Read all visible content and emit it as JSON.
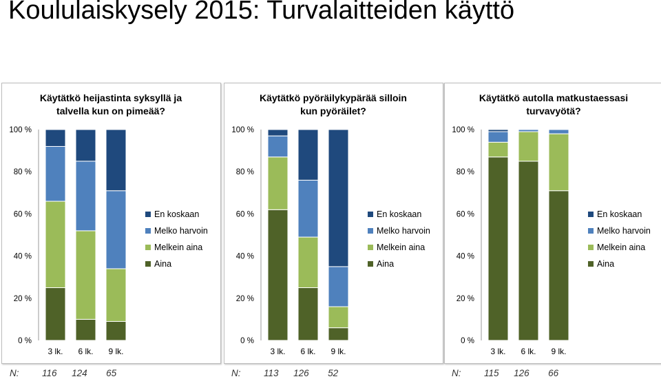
{
  "page_title": "Koululaiskysely 2015: Turvalaitteiden käyttö",
  "colors": {
    "En koskaan": "#1f497d",
    "Melko harvoin": "#4f81bd",
    "Melkein aina": "#9bbb59",
    "Aina": "#4f6228"
  },
  "chart_data": [
    {
      "type": "bar",
      "stacked": true,
      "title": [
        "Käytätkö heijastinta syksyllä ja",
        "talvella kun on pimeää?"
      ],
      "categories": [
        "3 lk.",
        "6 lk.",
        "9 lk."
      ],
      "yticks": [
        "0 %",
        "20 %",
        "40 %",
        "60 %",
        "80 %",
        "100 %"
      ],
      "ylim": [
        0,
        100
      ],
      "legend_position": "right",
      "series": [
        {
          "name": "Aina",
          "values": [
            25,
            10,
            9
          ]
        },
        {
          "name": "Melkein aina",
          "values": [
            41,
            42,
            25
          ]
        },
        {
          "name": "Melko harvoin",
          "values": [
            26,
            33,
            37
          ]
        },
        {
          "name": "En koskaan",
          "values": [
            8,
            15,
            29
          ]
        }
      ],
      "n_label": "N:",
      "n_values": [
        "116",
        "124",
        "65"
      ]
    },
    {
      "type": "bar",
      "stacked": true,
      "title": [
        "Käytätkö pyöräilykypärää silloin",
        "kun pyöräilet?"
      ],
      "categories": [
        "3 lk.",
        "6 lk.",
        "9 lk."
      ],
      "yticks": [
        "0 %",
        "20 %",
        "40 %",
        "60 %",
        "80 %",
        "100 %"
      ],
      "ylim": [
        0,
        100
      ],
      "legend_position": "right",
      "series": [
        {
          "name": "Aina",
          "values": [
            62,
            25,
            6
          ]
        },
        {
          "name": "Melkein aina",
          "values": [
            25,
            24,
            10
          ]
        },
        {
          "name": "Melko harvoin",
          "values": [
            10,
            27,
            19
          ]
        },
        {
          "name": "En koskaan",
          "values": [
            3,
            24,
            65
          ]
        }
      ],
      "n_label": "N:",
      "n_values": [
        "113",
        "126",
        "52"
      ]
    },
    {
      "type": "bar",
      "stacked": true,
      "title": [
        "Käytätkö autolla matkustaessasi",
        "turvavyötä?"
      ],
      "categories": [
        "3 lk.",
        "6 lk.",
        "9 lk."
      ],
      "yticks": [
        "0 %",
        "20 %",
        "40 %",
        "60 %",
        "80 %",
        "100 %"
      ],
      "ylim": [
        0,
        100
      ],
      "legend_position": "right",
      "series": [
        {
          "name": "Aina",
          "values": [
            87,
            85,
            71
          ]
        },
        {
          "name": "Melkein aina",
          "values": [
            7,
            14,
            27
          ]
        },
        {
          "name": "Melko harvoin",
          "values": [
            5,
            1,
            2
          ]
        },
        {
          "name": "En koskaan",
          "values": [
            1,
            0,
            0
          ]
        }
      ],
      "n_label": "N:",
      "n_values": [
        "115",
        "126",
        "66"
      ]
    }
  ]
}
